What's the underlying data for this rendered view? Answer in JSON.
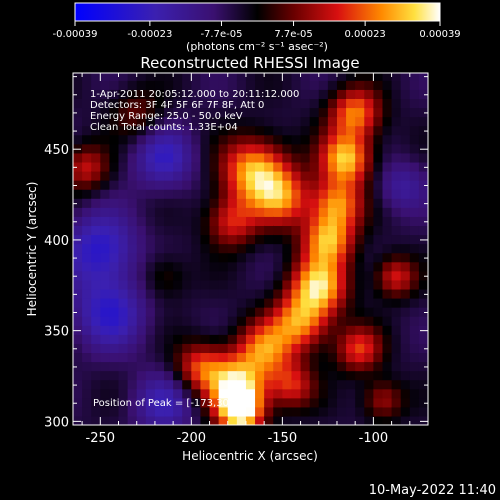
{
  "chart_data": {
    "type": "heatmap",
    "title": "Reconstructed RHESSI Image",
    "xlabel": "Heliocentric X (arcsec)",
    "ylabel": "Heliocentric Y (arcsec)",
    "xlim": [
      -265,
      -70
    ],
    "ylim": [
      298,
      492
    ],
    "x_ticks": [
      -250,
      -200,
      -150,
      -100
    ],
    "y_ticks": [
      300,
      350,
      400,
      450
    ],
    "colorbar": {
      "ticks": [
        "-0.00039",
        "-0.00023",
        "-7.7e-05",
        "7.7e-05",
        "0.00023",
        "0.00039"
      ],
      "tick_values": [
        -0.00039,
        -0.00023,
        -7.7e-05,
        7.7e-05,
        0.00023,
        0.00039
      ],
      "range": [
        -0.00039,
        0.00039
      ],
      "unit_label": "(photons cm⁻² s⁻¹ asec⁻²)"
    },
    "annotations": {
      "time": "1-Apr-2011 20:05:12.000 to 20:11:12.000",
      "detectors": "Detectors: 3F 4F 5F 6F 7F 8F, Att 0",
      "energy": "Energy Range: 25.0 - 50.0 keV",
      "clean": "Clean     Total counts: 1.33E+04",
      "peak": "Position of Peak = [-173,305]"
    },
    "ridges": [
      {
        "x": -165,
        "y": 438,
        "sigma": 13,
        "amp": 0.00036
      },
      {
        "x": -150,
        "y": 423,
        "sigma": 11,
        "amp": 0.00025
      },
      {
        "x": -178,
        "y": 410,
        "sigma": 10,
        "amp": 0.00022
      },
      {
        "x": -258,
        "y": 440,
        "sigma": 9,
        "amp": 0.0002
      },
      {
        "x": -230,
        "y": 470,
        "sigma": 10,
        "amp": 0.00012
      },
      {
        "x": -110,
        "y": 470,
        "sigma": 10,
        "amp": 0.0003
      },
      {
        "x": -115,
        "y": 445,
        "sigma": 10,
        "amp": 0.00036
      },
      {
        "x": -120,
        "y": 420,
        "sigma": 10,
        "amp": 0.0003
      },
      {
        "x": -125,
        "y": 400,
        "sigma": 10,
        "amp": 0.00032
      },
      {
        "x": -130,
        "y": 375,
        "sigma": 11,
        "amp": 0.00036
      },
      {
        "x": -140,
        "y": 355,
        "sigma": 11,
        "amp": 0.0003
      },
      {
        "x": -88,
        "y": 380,
        "sigma": 8,
        "amp": 0.00022
      },
      {
        "x": -160,
        "y": 340,
        "sigma": 11,
        "amp": 0.00028
      },
      {
        "x": -175,
        "y": 320,
        "sigma": 11,
        "amp": 0.00036
      },
      {
        "x": -173,
        "y": 305,
        "sigma": 9,
        "amp": 0.00039
      },
      {
        "x": -195,
        "y": 330,
        "sigma": 10,
        "amp": 0.00025
      },
      {
        "x": -145,
        "y": 320,
        "sigma": 9,
        "amp": 0.00022
      },
      {
        "x": -108,
        "y": 340,
        "sigma": 9,
        "amp": 0.00024
      },
      {
        "x": -95,
        "y": 312,
        "sigma": 8,
        "amp": 0.00018
      },
      {
        "x": -215,
        "y": 380,
        "sigma": 9,
        "amp": 0.0001
      },
      {
        "x": -250,
        "y": 395,
        "sigma": 14,
        "amp": -0.00022
      },
      {
        "x": -215,
        "y": 445,
        "sigma": 12,
        "amp": -0.00018
      },
      {
        "x": -245,
        "y": 360,
        "sigma": 14,
        "amp": -0.0002
      },
      {
        "x": -215,
        "y": 310,
        "sigma": 12,
        "amp": -0.00016
      },
      {
        "x": -85,
        "y": 430,
        "sigma": 10,
        "amp": -0.00012
      }
    ]
  },
  "footer": {
    "date": "10-May-2022 11:40"
  },
  "colors": {
    "background": "#000000",
    "axis": "#ffffff"
  }
}
